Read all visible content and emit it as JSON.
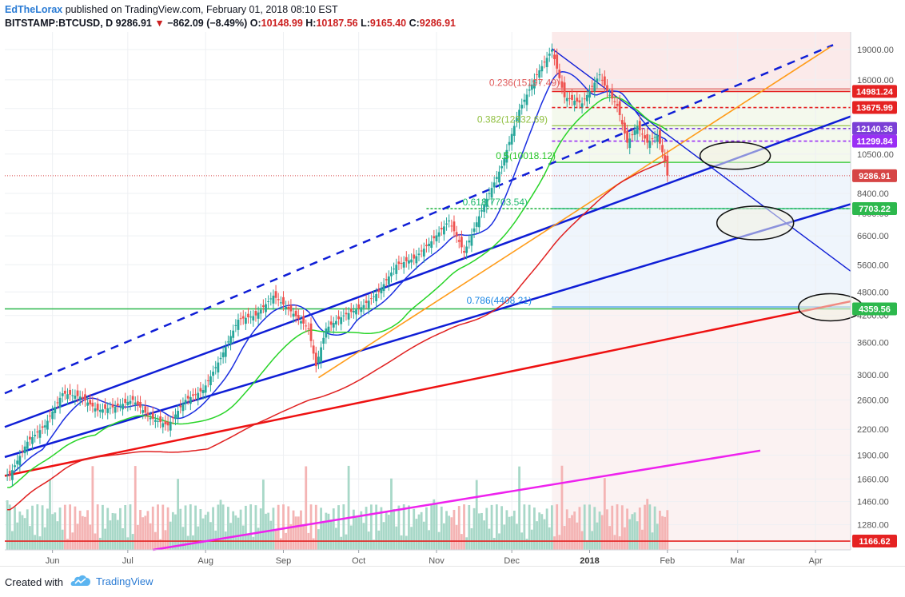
{
  "header": {
    "author": "EdTheLorax",
    "published": " published on TradingView.com, February 01, 2018 08:10 EST",
    "symbol": "BITSTAMP:BTCUSD, D",
    "last": "9286.91",
    "change": "−862.09 (−8.49%)",
    "o_label": "O:",
    "o": "10148.99",
    "h_label": "H:",
    "h": "10187.56",
    "l_label": "L:",
    "l": "9165.40",
    "c_label": "C:",
    "c": "9286.91"
  },
  "footer": {
    "created_with": "Created with",
    "brand": "TradingView"
  },
  "chart_data": {
    "type": "candlestick",
    "symbol": "BITSTAMP:BTCUSD",
    "interval": "D",
    "y_scale": "log",
    "y_ticks": [
      "19000.00",
      "16000.00",
      "13600.00",
      "12000.00",
      "10500.00",
      "8400.00",
      "7500.00",
      "6600.00",
      "5600.00",
      "4800.00",
      "4200.00",
      "3600.00",
      "3000.00",
      "2600.00",
      "2200.00",
      "1900.00",
      "1660.00",
      "1460.00",
      "1280.00"
    ],
    "x_ticks": [
      "Jun",
      "Jul",
      "Aug",
      "Sep",
      "Oct",
      "Nov",
      "Dec",
      "2018",
      "Feb",
      "Mar",
      "Apr"
    ],
    "x_tick_dates": [
      "2017-06-01",
      "2017-07-01",
      "2017-08-01",
      "2017-09-01",
      "2017-10-01",
      "2017-11-01",
      "2017-12-01",
      "2018-01-01",
      "2018-02-01",
      "2018-03-01",
      "2018-04-01"
    ],
    "x_range": [
      "2017-05-13",
      "2018-04-15"
    ],
    "y_range": [
      1110,
      21000
    ],
    "close_series": [
      [
        "2017-05-15",
        1700
      ],
      [
        "2017-05-22",
        2050
      ],
      [
        "2017-05-29",
        2250
      ],
      [
        "2017-06-05",
        2700
      ],
      [
        "2017-06-12",
        2650
      ],
      [
        "2017-06-19",
        2450
      ],
      [
        "2017-06-26",
        2500
      ],
      [
        "2017-07-03",
        2600
      ],
      [
        "2017-07-10",
        2350
      ],
      [
        "2017-07-17",
        2250
      ],
      [
        "2017-07-24",
        2600
      ],
      [
        "2017-07-31",
        2750
      ],
      [
        "2017-08-07",
        3300
      ],
      [
        "2017-08-14",
        4100
      ],
      [
        "2017-08-21",
        4200
      ],
      [
        "2017-08-28",
        4700
      ],
      [
        "2017-09-04",
        4300
      ],
      [
        "2017-09-11",
        3900
      ],
      [
        "2017-09-14",
        3150
      ],
      [
        "2017-09-18",
        3900
      ],
      [
        "2017-09-25",
        4200
      ],
      [
        "2017-10-02",
        4400
      ],
      [
        "2017-10-09",
        4800
      ],
      [
        "2017-10-16",
        5600
      ],
      [
        "2017-10-23",
        5800
      ],
      [
        "2017-10-30",
        6400
      ],
      [
        "2017-11-06",
        7200
      ],
      [
        "2017-11-12",
        6000
      ],
      [
        "2017-11-20",
        7900
      ],
      [
        "2017-11-27",
        9800
      ],
      [
        "2017-12-04",
        13500
      ],
      [
        "2017-12-11",
        16500
      ],
      [
        "2017-12-17",
        19000
      ],
      [
        "2017-12-22",
        14500
      ],
      [
        "2017-12-29",
        14000
      ],
      [
        "2018-01-05",
        16500
      ],
      [
        "2018-01-08",
        15000
      ],
      [
        "2018-01-12",
        13800
      ],
      [
        "2018-01-16",
        11200
      ],
      [
        "2018-01-20",
        12300
      ],
      [
        "2018-01-24",
        11200
      ],
      [
        "2018-01-28",
        11700
      ],
      [
        "2018-01-31",
        10100
      ],
      [
        "2018-02-01",
        9286.91
      ]
    ],
    "last_price": 9286.91,
    "fibonacci": [
      {
        "label": "0.236(15197.49)",
        "ratio": 0.236,
        "value": 15197.49,
        "color": "#e05a5a"
      },
      {
        "label": "0.382(12332.69)",
        "ratio": 0.382,
        "value": 12332.69,
        "color": "#8fbf3f"
      },
      {
        "label": "0.5(10018.12)",
        "ratio": 0.5,
        "value": 10018.12,
        "color": "#28c728"
      },
      {
        "label": "0.618(7703.54)",
        "ratio": 0.618,
        "value": 7703.54,
        "color": "#1fb86b"
      },
      {
        "label": "0.786(4408.21)",
        "ratio": 0.786,
        "value": 4408.21,
        "color": "#1e88e5"
      }
    ],
    "price_badges": [
      {
        "label": "14981.24",
        "value": 14981.24,
        "color": "#e52222"
      },
      {
        "label": "13675.99",
        "value": 13675.99,
        "color": "#e52222"
      },
      {
        "label": "12140.36",
        "value": 12140.36,
        "color": "#7b3fd6"
      },
      {
        "label": "11299.84",
        "value": 11299.84,
        "color": "#9a2ef5"
      },
      {
        "label": "9286.91",
        "value": 9286.91,
        "color": "#d64545"
      },
      {
        "label": "7703.22",
        "value": 7703.22,
        "color": "#2db84d"
      },
      {
        "label": "4359.56",
        "value": 4359.56,
        "color": "#2db84d"
      },
      {
        "label": "1166.62",
        "value": 1166.62,
        "color": "#e52222"
      }
    ],
    "colors": {
      "ma_blue": "#1a2ee0",
      "ma_green": "#28d428",
      "ma_red": "#e02020",
      "trend_blue": "#0f1ed6",
      "trend_red": "#ee1111",
      "trend_orange": "#ff9c1a",
      "trend_magenta": "#ee22ee",
      "candle_up": "#26a69a",
      "candle_down": "#ef5350"
    },
    "grid": true,
    "legend": "none"
  }
}
